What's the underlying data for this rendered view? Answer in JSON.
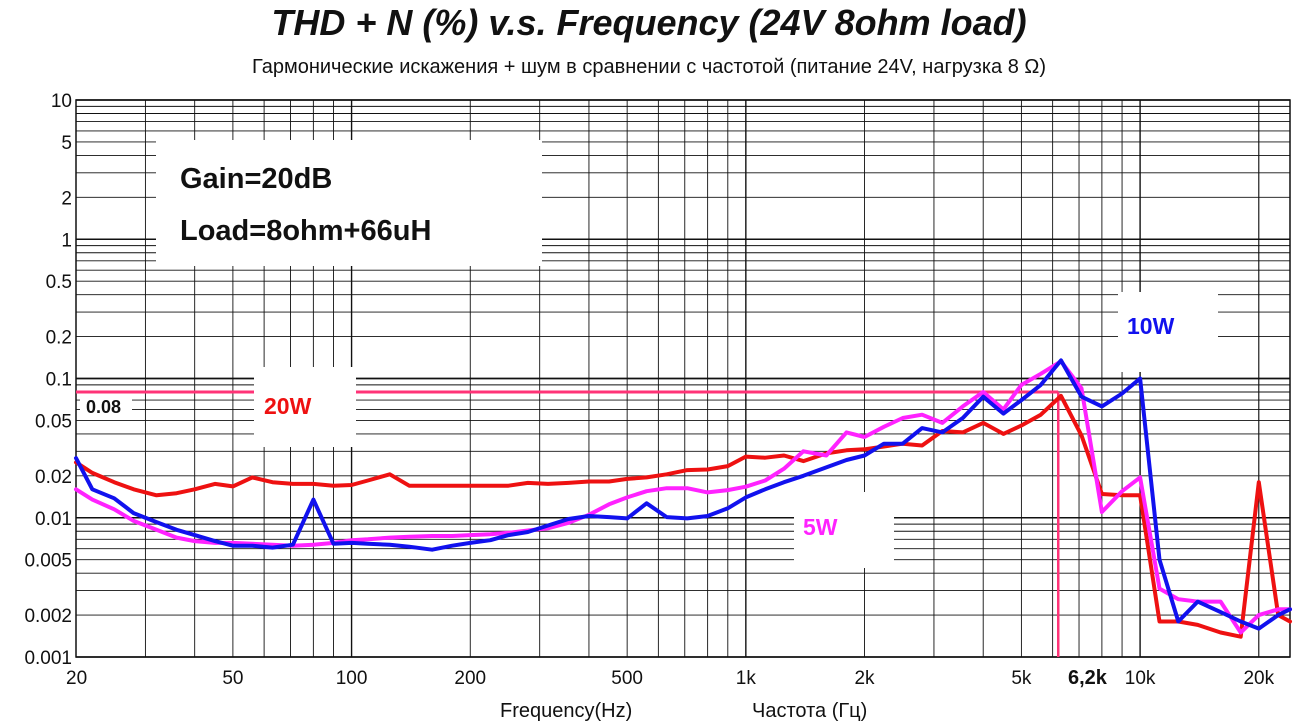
{
  "header": {
    "title": "THD + N (%) v.s. Frequency (24V 8ohm load)",
    "subtitle": "Гармонические искажения + шум в сравнении с частотой (питание 24V, нагрузка 8 Ω)"
  },
  "axes": {
    "xlabel_en": "Frequency(Hz)",
    "xlabel_ru": "Частота (Гц)"
  },
  "annotations": {
    "gain": "Gain=20dB",
    "load": "Load=8ohm+66uH",
    "ref_value": "0.08",
    "marker_freq": "6,2k",
    "label_20w": "20W",
    "label_10w": "10W",
    "label_5w": "5W"
  },
  "colors": {
    "20W": "#ee1111",
    "10W": "#1111ee",
    "5W": "#ff22ff",
    "ref": "#ff3377",
    "grid": "#111111"
  },
  "chart_data": {
    "type": "line",
    "title": "THD + N (%) v.s. Frequency (24V 8ohm load)",
    "subtitle": "Гармонические искажения + шум в сравнении с частотой (питание 24V, нагрузка 8 Ω)",
    "xlabel": "Frequency(Hz)",
    "xlabel_alt": "Частота (Гц)",
    "ylabel": "",
    "x_scale": "log",
    "y_scale": "log",
    "xlim": [
      20,
      24000
    ],
    "ylim": [
      0.001,
      10
    ],
    "grid": true,
    "x_ticks": [
      {
        "v": 20,
        "label": "20"
      },
      {
        "v": 50,
        "label": "50"
      },
      {
        "v": 100,
        "label": "100"
      },
      {
        "v": 200,
        "label": "200"
      },
      {
        "v": 500,
        "label": "500"
      },
      {
        "v": 1000,
        "label": "1k"
      },
      {
        "v": 2000,
        "label": "2k"
      },
      {
        "v": 5000,
        "label": "5k"
      },
      {
        "v": 10000,
        "label": "10k"
      },
      {
        "v": 20000,
        "label": "20k"
      }
    ],
    "y_ticks": [
      {
        "v": 10,
        "label": "10"
      },
      {
        "v": 5,
        "label": "5"
      },
      {
        "v": 2,
        "label": "2"
      },
      {
        "v": 1,
        "label": "1"
      },
      {
        "v": 0.5,
        "label": "0.5"
      },
      {
        "v": 0.2,
        "label": "0.2"
      },
      {
        "v": 0.1,
        "label": "0.1"
      },
      {
        "v": 0.05,
        "label": "0.05"
      },
      {
        "v": 0.02,
        "label": "0.02"
      },
      {
        "v": 0.01,
        "label": "0.01"
      },
      {
        "v": 0.005,
        "label": "0.005"
      },
      {
        "v": 0.002,
        "label": "0.002"
      },
      {
        "v": 0.001,
        "label": "0.001"
      }
    ],
    "reference_lines": [
      {
        "axis": "y",
        "value": 0.08,
        "label": "0.08"
      },
      {
        "axis": "x",
        "value": 6200,
        "label": "6,2k"
      }
    ],
    "series": [
      {
        "name": "20W",
        "color": "#ee1111",
        "points": [
          [
            20,
            0.025
          ],
          [
            22,
            0.021
          ],
          [
            25,
            0.018
          ],
          [
            28,
            0.016
          ],
          [
            32,
            0.0145
          ],
          [
            36,
            0.015
          ],
          [
            40,
            0.016
          ],
          [
            45,
            0.0175
          ],
          [
            50,
            0.0168
          ],
          [
            56,
            0.0195
          ],
          [
            63,
            0.018
          ],
          [
            71,
            0.0175
          ],
          [
            80,
            0.0175
          ],
          [
            90,
            0.017
          ],
          [
            100,
            0.0172
          ],
          [
            110,
            0.0185
          ],
          [
            125,
            0.0205
          ],
          [
            140,
            0.017
          ],
          [
            160,
            0.017
          ],
          [
            180,
            0.017
          ],
          [
            200,
            0.017
          ],
          [
            250,
            0.017
          ],
          [
            280,
            0.0178
          ],
          [
            315,
            0.0175
          ],
          [
            355,
            0.0178
          ],
          [
            400,
            0.0182
          ],
          [
            450,
            0.0182
          ],
          [
            500,
            0.019
          ],
          [
            560,
            0.0195
          ],
          [
            630,
            0.0205
          ],
          [
            710,
            0.022
          ],
          [
            800,
            0.0222
          ],
          [
            900,
            0.0235
          ],
          [
            1000,
            0.0275
          ],
          [
            1120,
            0.027
          ],
          [
            1250,
            0.028
          ],
          [
            1400,
            0.0255
          ],
          [
            1600,
            0.029
          ],
          [
            1800,
            0.0305
          ],
          [
            2000,
            0.031
          ],
          [
            2240,
            0.0325
          ],
          [
            2500,
            0.034
          ],
          [
            2800,
            0.033
          ],
          [
            3150,
            0.042
          ],
          [
            3550,
            0.041
          ],
          [
            4000,
            0.048
          ],
          [
            4500,
            0.04
          ],
          [
            5000,
            0.046
          ],
          [
            5600,
            0.055
          ],
          [
            6300,
            0.075
          ],
          [
            7100,
            0.039
          ],
          [
            8000,
            0.0148
          ],
          [
            9000,
            0.0145
          ],
          [
            10000,
            0.0145
          ],
          [
            11200,
            0.0018
          ],
          [
            12500,
            0.0018
          ],
          [
            14000,
            0.0017
          ],
          [
            16000,
            0.0015
          ],
          [
            18000,
            0.0014
          ],
          [
            20000,
            0.018
          ],
          [
            22400,
            0.002
          ],
          [
            24000,
            0.0018
          ]
        ]
      },
      {
        "name": "10W",
        "color": "#1111ee",
        "points": [
          [
            20,
            0.0268
          ],
          [
            22,
            0.016
          ],
          [
            25,
            0.0138
          ],
          [
            28,
            0.0108
          ],
          [
            32,
            0.0093
          ],
          [
            36,
            0.0082
          ],
          [
            40,
            0.0075
          ],
          [
            45,
            0.0068
          ],
          [
            50,
            0.0063
          ],
          [
            56,
            0.0063
          ],
          [
            63,
            0.0061
          ],
          [
            71,
            0.0064
          ],
          [
            80,
            0.0135
          ],
          [
            90,
            0.0065
          ],
          [
            100,
            0.0066
          ],
          [
            110,
            0.0065
          ],
          [
            125,
            0.0064
          ],
          [
            140,
            0.0062
          ],
          [
            160,
            0.0059
          ],
          [
            180,
            0.0063
          ],
          [
            200,
            0.0066
          ],
          [
            225,
            0.0069
          ],
          [
            250,
            0.0075
          ],
          [
            280,
            0.0079
          ],
          [
            315,
            0.0088
          ],
          [
            355,
            0.0098
          ],
          [
            400,
            0.0103
          ],
          [
            450,
            0.0101
          ],
          [
            500,
            0.0099
          ],
          [
            560,
            0.0127
          ],
          [
            630,
            0.0101
          ],
          [
            710,
            0.0099
          ],
          [
            800,
            0.0103
          ],
          [
            900,
            0.0117
          ],
          [
            1000,
            0.014
          ],
          [
            1120,
            0.016
          ],
          [
            1250,
            0.018
          ],
          [
            1400,
            0.02
          ],
          [
            1600,
            0.023
          ],
          [
            1800,
            0.026
          ],
          [
            2000,
            0.028
          ],
          [
            2240,
            0.034
          ],
          [
            2500,
            0.034
          ],
          [
            2800,
            0.044
          ],
          [
            3150,
            0.041
          ],
          [
            3550,
            0.052
          ],
          [
            4000,
            0.074
          ],
          [
            4500,
            0.056
          ],
          [
            5000,
            0.07
          ],
          [
            5600,
            0.09
          ],
          [
            6300,
            0.135
          ],
          [
            7100,
            0.074
          ],
          [
            8000,
            0.063
          ],
          [
            9000,
            0.078
          ],
          [
            10000,
            0.1
          ],
          [
            11200,
            0.005
          ],
          [
            12500,
            0.0018
          ],
          [
            14000,
            0.0025
          ],
          [
            16000,
            0.0021
          ],
          [
            18000,
            0.0018
          ],
          [
            20000,
            0.0016
          ],
          [
            22400,
            0.002
          ],
          [
            24000,
            0.0022
          ]
        ]
      },
      {
        "name": "5W",
        "color": "#ff22ff",
        "points": [
          [
            20,
            0.016
          ],
          [
            22,
            0.0135
          ],
          [
            25,
            0.0115
          ],
          [
            28,
            0.0095
          ],
          [
            32,
            0.0082
          ],
          [
            36,
            0.0072
          ],
          [
            40,
            0.0068
          ],
          [
            45,
            0.0066
          ],
          [
            50,
            0.0066
          ],
          [
            56,
            0.0065
          ],
          [
            63,
            0.0064
          ],
          [
            71,
            0.0063
          ],
          [
            80,
            0.0064
          ],
          [
            90,
            0.0066
          ],
          [
            100,
            0.0069
          ],
          [
            110,
            0.007
          ],
          [
            125,
            0.0072
          ],
          [
            140,
            0.0073
          ],
          [
            160,
            0.0074
          ],
          [
            180,
            0.0074
          ],
          [
            200,
            0.0075
          ],
          [
            225,
            0.0076
          ],
          [
            250,
            0.0078
          ],
          [
            280,
            0.0081
          ],
          [
            315,
            0.0084
          ],
          [
            355,
            0.0092
          ],
          [
            400,
            0.0105
          ],
          [
            450,
            0.0125
          ],
          [
            500,
            0.014
          ],
          [
            560,
            0.0155
          ],
          [
            630,
            0.0163
          ],
          [
            710,
            0.0163
          ],
          [
            800,
            0.0152
          ],
          [
            900,
            0.0158
          ],
          [
            1000,
            0.0167
          ],
          [
            1120,
            0.0185
          ],
          [
            1250,
            0.0225
          ],
          [
            1400,
            0.03
          ],
          [
            1600,
            0.028
          ],
          [
            1800,
            0.041
          ],
          [
            2000,
            0.038
          ],
          [
            2240,
            0.045
          ],
          [
            2500,
            0.052
          ],
          [
            2800,
            0.055
          ],
          [
            3150,
            0.048
          ],
          [
            3550,
            0.063
          ],
          [
            4000,
            0.08
          ],
          [
            4500,
            0.06
          ],
          [
            5000,
            0.09
          ],
          [
            5600,
            0.108
          ],
          [
            6300,
            0.133
          ],
          [
            7100,
            0.085
          ],
          [
            8000,
            0.011
          ],
          [
            9000,
            0.0155
          ],
          [
            10000,
            0.0195
          ],
          [
            11200,
            0.0031
          ],
          [
            12500,
            0.0026
          ],
          [
            14000,
            0.0025
          ],
          [
            16000,
            0.0025
          ],
          [
            18000,
            0.0015
          ],
          [
            20000,
            0.002
          ],
          [
            22400,
            0.0022
          ],
          [
            24000,
            0.0022
          ]
        ]
      }
    ]
  }
}
